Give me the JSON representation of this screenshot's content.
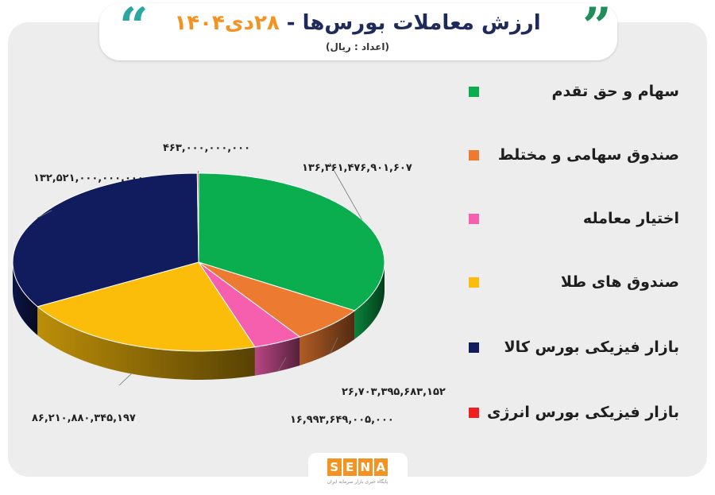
{
  "header": {
    "title_main": "ارزش معاملات بورس‌ها -",
    "title_date": "۲۸دی۱۴۰۴",
    "subtitle": "(اعداد : ریال)"
  },
  "brand": {
    "name_letters": [
      "S",
      "E",
      "N",
      "A"
    ],
    "tagline": "پایگاه خبری بازار سرمایه ایران"
  },
  "chart_data": {
    "type": "pie",
    "title": "ارزش معاملات بورس‌ها - ۲۸دی۱۴۰۴",
    "unit": "ریال",
    "legend_position": "right",
    "slices": [
      {
        "name": "سهام و حق تقدم",
        "value": 136361476901607,
        "label": "۱۳۶,۳۶۱,۴۷۶,۹۰۱,۶۰۷",
        "color": "#0aae4e"
      },
      {
        "name": "صندوق سهامی و مختلط",
        "value": 26703395683152,
        "label": "۲۶,۷۰۳,۳۹۵,۶۸۳,۱۵۲",
        "color": "#ec7a30"
      },
      {
        "name": "اختیار معامله",
        "value": 16993649005000,
        "label": "۱۶,۹۹۳,۶۴۹,۰۰۵,۰۰۰",
        "color": "#f55fae"
      },
      {
        "name": "صندوق های طلا",
        "value": 86210880345197,
        "label": "۸۶,۲۱۰,۸۸۰,۳۴۵,۱۹۷",
        "color": "#fbbd0a"
      },
      {
        "name": "بازار فیزیکی بورس کالا",
        "value": 132521000000000,
        "label": "۱۳۲,۵۲۱,۰۰۰,۰۰۰,۰۰۰",
        "color": "#101c5e"
      },
      {
        "name": "بازار فیزیکی بورس انرژی",
        "value": 463000000000,
        "label": "۴۶۳,۰۰۰,۰۰۰,۰۰۰",
        "color": "#ef2020"
      }
    ]
  }
}
